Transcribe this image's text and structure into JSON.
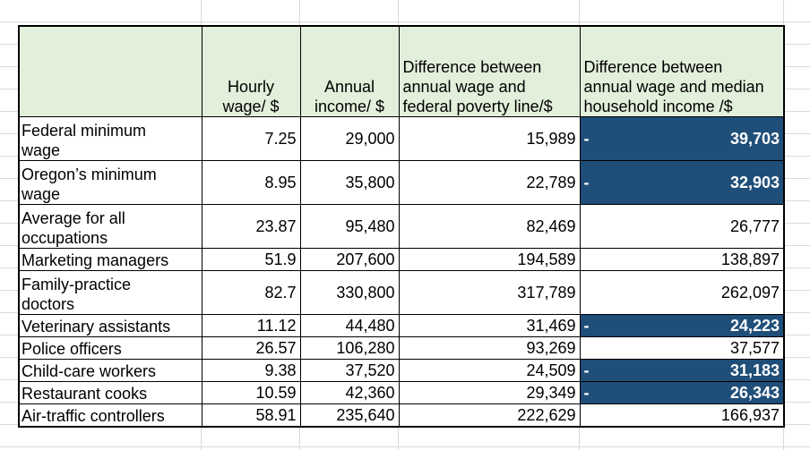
{
  "headers": {
    "category": "",
    "hourly": [
      "Hourly",
      "wage/ $"
    ],
    "annual": [
      "Annual",
      "income/ $"
    ],
    "diff_poverty": [
      "Difference between",
      "annual wage and",
      "federal poverty line/$"
    ],
    "diff_median": [
      "Difference between",
      "annual wage and median",
      "household income /$"
    ]
  },
  "rows": [
    {
      "label": [
        "Federal minimum",
        "wage"
      ],
      "hourly": "7.25",
      "annual": "29,000",
      "diff_poverty": "15,989",
      "diff_median": "39,703",
      "below_median": true
    },
    {
      "label": [
        "Oregon’s minimum",
        "wage"
      ],
      "hourly": "8.95",
      "annual": "35,800",
      "diff_poverty": "22,789",
      "diff_median": "32,903",
      "below_median": true
    },
    {
      "label": [
        "Average for all",
        "occupations"
      ],
      "hourly": "23.87",
      "annual": "95,480",
      "diff_poverty": "82,469",
      "diff_median": "26,777",
      "below_median": false
    },
    {
      "label": [
        "Marketing managers"
      ],
      "hourly": "51.9",
      "annual": "207,600",
      "diff_poverty": "194,589",
      "diff_median": "138,897",
      "below_median": false
    },
    {
      "label": [
        "Family-practice",
        "doctors"
      ],
      "hourly": "82.7",
      "annual": "330,800",
      "diff_poverty": "317,789",
      "diff_median": "262,097",
      "below_median": false
    },
    {
      "label": [
        "Veterinary assistants"
      ],
      "hourly": "11.12",
      "annual": "44,480",
      "diff_poverty": "31,469",
      "diff_median": "24,223",
      "below_median": true
    },
    {
      "label": [
        "Police officers"
      ],
      "hourly": "26.57",
      "annual": "106,280",
      "diff_poverty": "93,269",
      "diff_median": "37,577",
      "below_median": false
    },
    {
      "label": [
        "Child-care workers"
      ],
      "hourly": "9.38",
      "annual": "37,520",
      "diff_poverty": "24,509",
      "diff_median": "31,183",
      "below_median": true
    },
    {
      "label": [
        "Restaurant cooks"
      ],
      "hourly": "10.59",
      "annual": "42,360",
      "diff_poverty": "29,349",
      "diff_median": "26,343",
      "below_median": true
    },
    {
      "label": [
        "Air-traffic controllers"
      ],
      "hourly": "58.91",
      "annual": "235,640",
      "diff_poverty": "222,629",
      "diff_median": "166,937",
      "below_median": false
    }
  ],
  "negative_sign": "-",
  "colors": {
    "header_fill": "#e2efda",
    "negative_fill": "#1f4e79",
    "negative_text": "#ffffff",
    "gridline": "#dadada"
  }
}
